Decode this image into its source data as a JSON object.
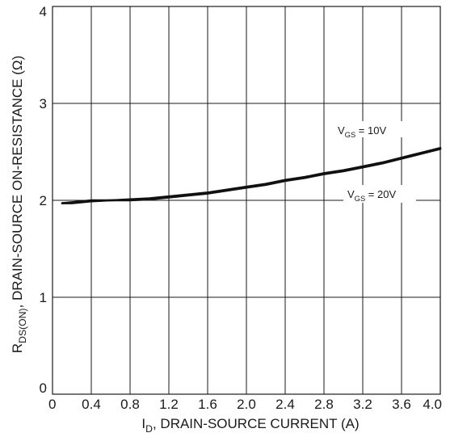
{
  "chart_data": {
    "type": "line",
    "title": "",
    "xlabel": {
      "main": "I",
      "sub": "D",
      "rest": ", DRAIN-SOURCE CURRENT (A)"
    },
    "ylabel": {
      "main": "R",
      "sub": "DS(ON)",
      "rest": ", DRAIN-SOURCE ON-RESISTANCE (Ω)"
    },
    "xlim": [
      0,
      4.0
    ],
    "ylim": [
      0,
      4
    ],
    "x_ticks": [
      "0",
      "0.4",
      "0.8",
      "1.2",
      "1.6",
      "2.0",
      "2.4",
      "2.8",
      "3.2",
      "3.6",
      "4.0"
    ],
    "y_ticks": [
      "0",
      "1",
      "2",
      "3",
      "4"
    ],
    "grid": true,
    "series": [
      {
        "name": "V_GS = 10V",
        "x": [
          0.1,
          0.2,
          0.4,
          0.6,
          0.8,
          1.0,
          1.2,
          1.4,
          1.6,
          1.8,
          2.0,
          2.2,
          2.4,
          2.6,
          2.8,
          3.0,
          3.2,
          3.4,
          3.6,
          3.8,
          4.0
        ],
        "y": [
          1.97,
          1.98,
          2.0,
          2.0,
          2.01,
          2.02,
          2.04,
          2.06,
          2.08,
          2.11,
          2.14,
          2.17,
          2.21,
          2.24,
          2.28,
          2.31,
          2.35,
          2.39,
          2.44,
          2.49,
          2.54
        ]
      },
      {
        "name": "V_GS = 20V",
        "x": [
          0.1,
          0.2,
          0.4,
          0.6,
          0.8,
          1.0,
          1.2,
          1.4,
          1.6,
          1.8,
          2.0,
          2.2,
          2.4,
          2.6,
          2.8,
          3.0,
          3.2,
          3.4,
          3.6,
          3.8,
          4.0
        ],
        "y": [
          1.97,
          1.97,
          1.99,
          2.0,
          2.0,
          2.01,
          2.03,
          2.05,
          2.07,
          2.1,
          2.13,
          2.16,
          2.2,
          2.23,
          2.27,
          2.3,
          2.34,
          2.38,
          2.43,
          2.48,
          2.53
        ]
      }
    ],
    "annotations": [
      {
        "main": "V",
        "sub": "GS",
        "rest": " = 10V"
      },
      {
        "main": "V",
        "sub": "GS",
        "rest": " = 20V"
      }
    ],
    "colors": {
      "line": "#111111",
      "grid": "#1a1a1a",
      "background": "#ffffff"
    }
  }
}
